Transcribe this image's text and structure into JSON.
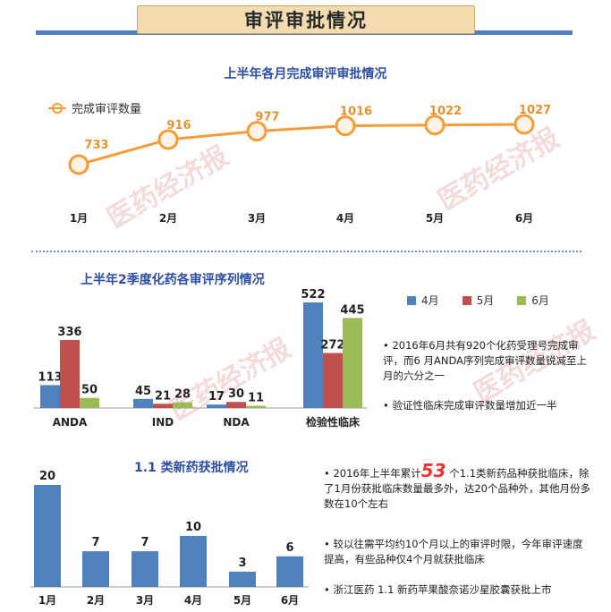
{
  "header": {
    "title": "审评审批情况"
  },
  "watermark": "医药经济报",
  "chart_data": [
    {
      "type": "line",
      "title": "上半年各月完成审评审批情况",
      "series": [
        {
          "name": "完成审评数量",
          "values": [
            733,
            916,
            977,
            1016,
            1022,
            1027
          ]
        }
      ],
      "categories": [
        "1月",
        "2月",
        "3月",
        "4月",
        "5月",
        "6月"
      ],
      "colors": {
        "line": "#f29d37",
        "marker_fill": "#fff3e6",
        "label": "#e8922b"
      },
      "legend": "top-left"
    },
    {
      "type": "bar",
      "title": "上半年2季度化药各审评序列情况",
      "categories": [
        "ANDA",
        "IND",
        "NDA",
        "检验性临床"
      ],
      "series": [
        {
          "name": "4月",
          "values": [
            113,
            45,
            17,
            522
          ],
          "color": "#4f81bd"
        },
        {
          "name": "5月",
          "values": [
            336,
            21,
            30,
            272
          ],
          "color": "#c0504d"
        },
        {
          "name": "6月",
          "values": [
            50,
            28,
            11,
            445
          ],
          "color": "#9bbb59"
        }
      ],
      "legend": "top-right"
    },
    {
      "type": "bar",
      "title": "1.1 类新药获批情况",
      "categories": [
        "1月",
        "2月",
        "3月",
        "4月",
        "5月",
        "6月"
      ],
      "values": [
        20,
        7,
        7,
        10,
        3,
        6
      ],
      "color": "#4f81bd"
    }
  ],
  "notes_q2": [
    "2016年6月共有920个化药受理号完成审评，而6 月ANDA序列完成审评数量锐减至上月的六分之一",
    "验证性临床完成审评数量增加近一半"
  ],
  "notes_newdrug": {
    "first_pre": "2016年上半年累计",
    "first_num": "53",
    "first_post": "个1.1类新药品种获批临床，除了1月份获批临床数量最多外，达20个品种外，其他月份多数在10个左右",
    "second": "较以往需平均约10个月以上的审评时限，今年审评速度提高，有些品种仅4个月就获批临床",
    "third": "浙江医药 1.1 新药苹果酸奈诺沙星胶囊获批上市"
  },
  "bullet_symbol": "•"
}
